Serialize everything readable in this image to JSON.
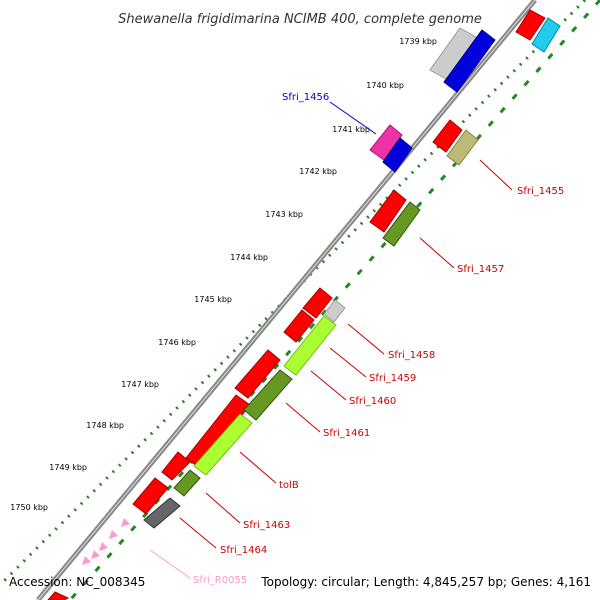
{
  "title": "Shewanella frigidimarina NCIMB 400, complete genome",
  "footer": {
    "accession": "Accession: NC_008345",
    "topology": "Topology: circular; Length: 4,845,257 bp; Genes: 4,161"
  },
  "scale_ticks": [
    "1739 kbp",
    "1740 kbp",
    "1741 kbp",
    "1742 kbp",
    "1743 kbp",
    "1744 kbp",
    "1745 kbp",
    "1746 kbp",
    "1747 kbp",
    "1748 kbp",
    "1749 kbp",
    "1750 kbp"
  ],
  "gene_labels": [
    {
      "name": "Sfri_1456",
      "color": "#0000cc"
    },
    {
      "name": "Sfri_1455",
      "color": "#cc0000"
    },
    {
      "name": "Sfri_1457",
      "color": "#cc0000"
    },
    {
      "name": "Sfri_1458",
      "color": "#cc0000"
    },
    {
      "name": "Sfri_1459",
      "color": "#cc0000"
    },
    {
      "name": "Sfri_1460",
      "color": "#cc0000"
    },
    {
      "name": "Sfri_1461",
      "color": "#cc0000"
    },
    {
      "name": "tolB",
      "color": "#cc0000"
    },
    {
      "name": "Sfri_1463",
      "color": "#cc0000"
    },
    {
      "name": "Sfri_1464",
      "color": "#cc0000"
    },
    {
      "name": "Sfri_R0055",
      "color": "#ff99cc"
    }
  ],
  "colors": {
    "cds_red": "#ff0000",
    "blue": "#0000dd",
    "cyan": "#22ccee",
    "magenta": "#ee33aa",
    "silver": "#cccccc",
    "olive": "#669922",
    "khaki": "#bbbb77",
    "lime": "#aaff33",
    "dark_gray": "#666666",
    "pink": "#ff99cc",
    "axis_green": "#228822",
    "backbone": "#777777"
  }
}
